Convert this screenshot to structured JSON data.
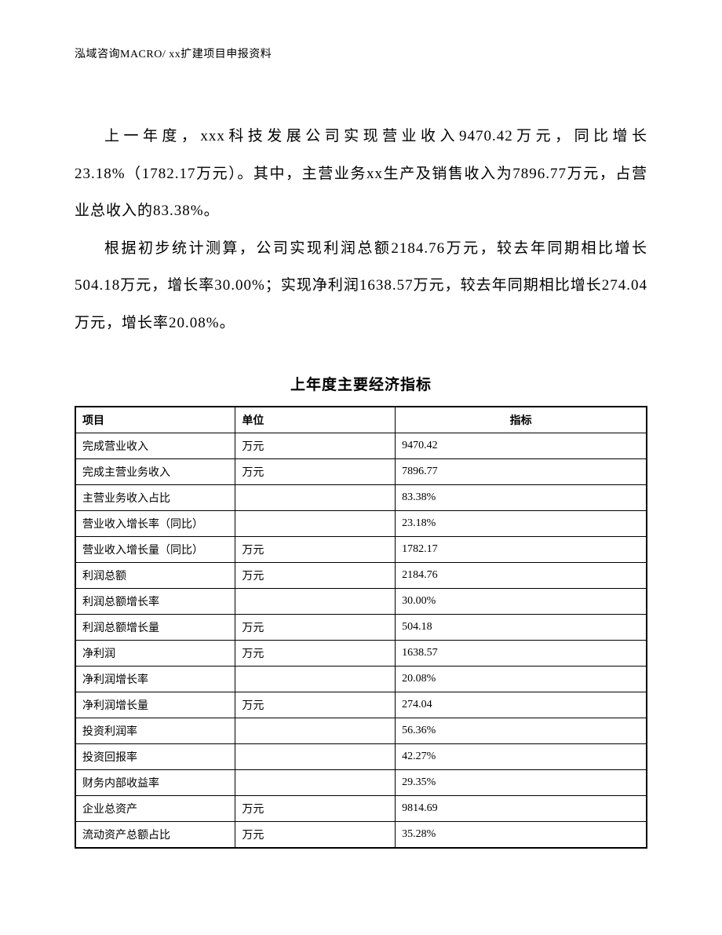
{
  "header": "泓域咨询MACRO/    xx扩建项目申报资料",
  "paragraph1": "上一年度，xxx科技发展公司实现营业收入9470.42万元，同比增长23.18%（1782.17万元）。其中，主营业务xx生产及销售收入为7896.77万元，占营业总收入的83.38%。",
  "paragraph2": "根据初步统计测算，公司实现利润总额2184.76万元，较去年同期相比增长504.18万元，增长率30.00%；实现净利润1638.57万元，较去年同期相比增长274.04万元，增长率20.08%。",
  "table": {
    "title": "上年度主要经济指标",
    "columns": [
      "项目",
      "单位",
      "指标"
    ],
    "rows": [
      {
        "c0": "完成营业收入",
        "c1": "万元",
        "c2": "9470.42"
      },
      {
        "c0": "完成主营业务收入",
        "c1": "万元",
        "c2": "7896.77"
      },
      {
        "c0": "主营业务收入占比",
        "c1": "",
        "c2": "83.38%"
      },
      {
        "c0": "营业收入增长率（同比）",
        "c1": "",
        "c2": "23.18%"
      },
      {
        "c0": "营业收入增长量（同比）",
        "c1": "万元",
        "c2": "1782.17"
      },
      {
        "c0": "利润总额",
        "c1": "万元",
        "c2": "2184.76"
      },
      {
        "c0": "利润总额增长率",
        "c1": "",
        "c2": "30.00%"
      },
      {
        "c0": "利润总额增长量",
        "c1": "万元",
        "c2": "504.18"
      },
      {
        "c0": "净利润",
        "c1": "万元",
        "c2": "1638.57"
      },
      {
        "c0": "净利润增长率",
        "c1": "",
        "c2": "20.08%"
      },
      {
        "c0": "净利润增长量",
        "c1": "万元",
        "c2": "274.04"
      },
      {
        "c0": "投资利润率",
        "c1": "",
        "c2": "56.36%"
      },
      {
        "c0": "投资回报率",
        "c1": "",
        "c2": "42.27%"
      },
      {
        "c0": "财务内部收益率",
        "c1": "",
        "c2": "29.35%"
      },
      {
        "c0": "企业总资产",
        "c1": "万元",
        "c2": "9814.69"
      },
      {
        "c0": "流动资产总额占比",
        "c1": "万元",
        "c2": "35.28%"
      }
    ]
  }
}
